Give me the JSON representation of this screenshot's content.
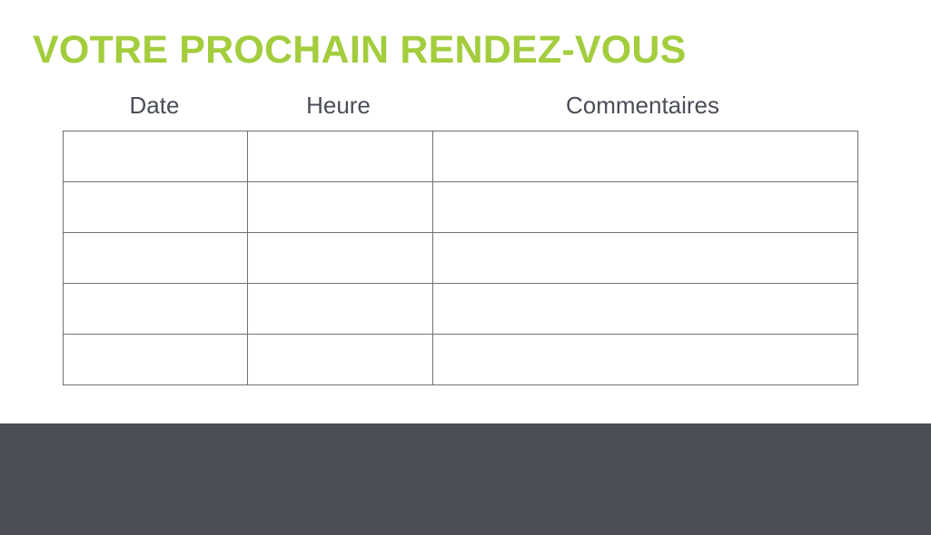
{
  "title": "VOTRE PROCHAIN RENDEZ-VOUS",
  "table": {
    "columns": [
      "Date",
      "Heure",
      "Commentaires"
    ],
    "rows": [
      [
        "",
        "",
        ""
      ],
      [
        "",
        "",
        ""
      ],
      [
        "",
        "",
        ""
      ],
      [
        "",
        "",
        ""
      ],
      [
        "",
        "",
        ""
      ]
    ]
  },
  "colors": {
    "accent": "#a3cd3d",
    "text": "#4a4e57",
    "footer_band": "#4a4e57"
  }
}
